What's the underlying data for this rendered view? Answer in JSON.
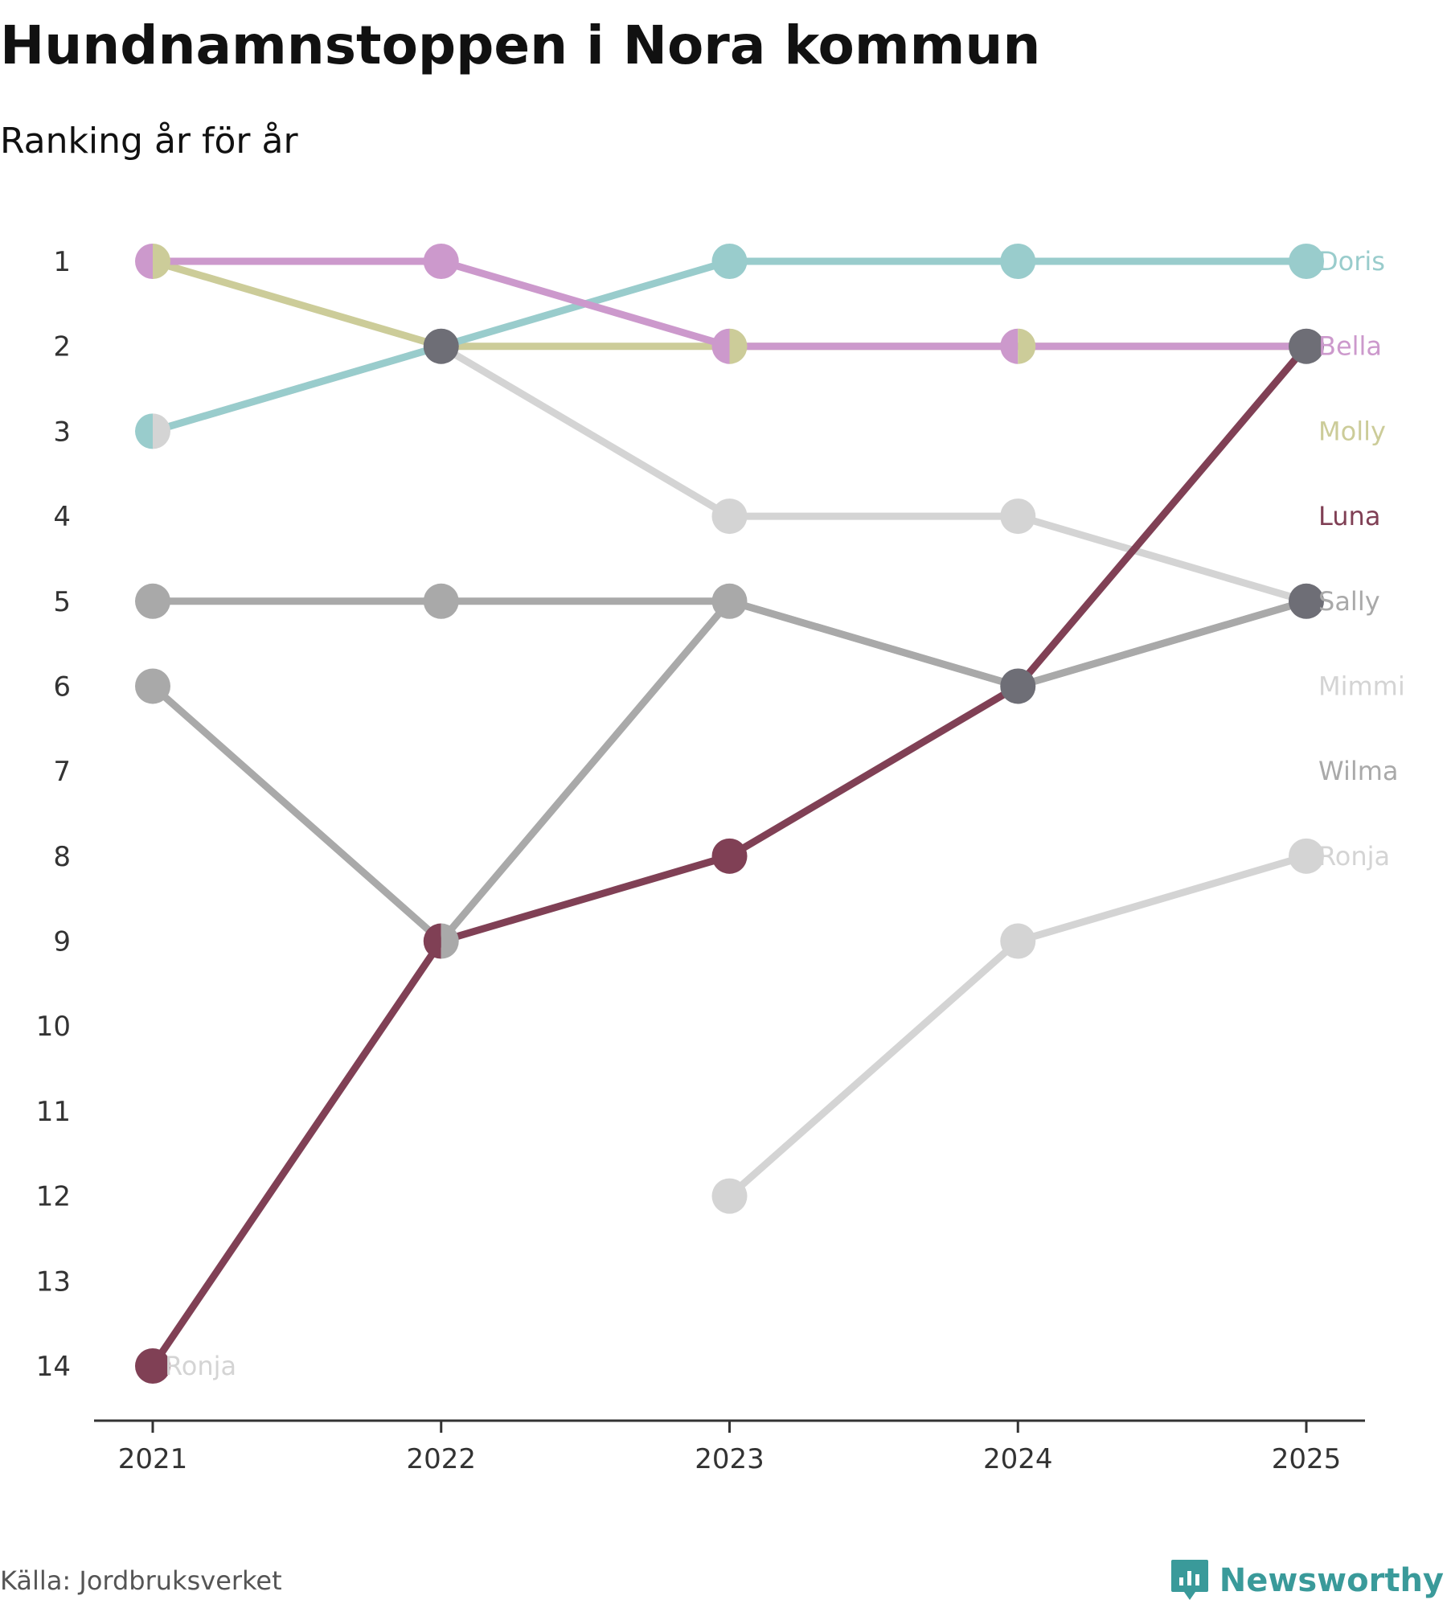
{
  "header": {
    "title": "Hundnamnstoppen i Nora kommun",
    "subtitle": "Ranking år för år"
  },
  "footer": {
    "source": "Källa: Jordbruksverket",
    "brand": "Newsworthy",
    "brand_color": "#3a9a9a"
  },
  "chart_data": {
    "type": "line",
    "title": "Hundnamnstoppen i Nora kommun",
    "subtitle": "Ranking år för år",
    "xlabel": "",
    "ylabel": "",
    "categories": [
      "2021",
      "2022",
      "2023",
      "2024",
      "2025"
    ],
    "y_ticks": [
      "1",
      "2",
      "3",
      "4",
      "5",
      "6",
      "7",
      "8",
      "9",
      "10",
      "11",
      "12",
      "13",
      "14"
    ],
    "ylim": [
      1,
      14
    ],
    "y_inverted": true,
    "grid": false,
    "series": [
      {
        "name": "Mimmi",
        "color": "#d4d4d4",
        "values": [
          3,
          2,
          4,
          4,
          5
        ]
      },
      {
        "name": "Ronja",
        "color": "#d4d4d4",
        "values": [
          null,
          null,
          12,
          9,
          8
        ]
      },
      {
        "name": "Sally",
        "color": "#a9a9a9",
        "values": [
          5,
          5,
          5,
          6,
          5
        ]
      },
      {
        "name": "Wilma",
        "color": "#a9a9a9",
        "values": [
          6,
          9,
          5,
          6,
          5
        ]
      },
      {
        "name": "Molly",
        "color": "#cccc99",
        "values": [
          1,
          2,
          2,
          2,
          2
        ]
      },
      {
        "name": "Doris",
        "color": "#99cccc",
        "values": [
          3,
          2,
          1,
          1,
          1
        ]
      },
      {
        "name": "Bella",
        "color": "#cc99cc",
        "values": [
          1,
          1,
          2,
          2,
          2
        ]
      },
      {
        "name": "Luna",
        "color": "#804055",
        "values": [
          14,
          9,
          8,
          6,
          2
        ]
      }
    ],
    "end_labels": [
      {
        "name": "Doris",
        "rank": 1,
        "color": "#99cccc"
      },
      {
        "name": "Bella",
        "rank": 2,
        "color": "#cc99cc"
      },
      {
        "name": "Molly",
        "rank": 3,
        "color": "#cccc99"
      },
      {
        "name": "Luna",
        "rank": 4,
        "color": "#804055"
      },
      {
        "name": "Sally",
        "rank": 5,
        "color": "#a9a9a9"
      },
      {
        "name": "Mimmi",
        "rank": 6,
        "color": "#d4d4d4"
      },
      {
        "name": "Wilma",
        "rank": 7,
        "color": "#a9a9a9"
      },
      {
        "name": "Ronja",
        "rank": 8,
        "color": "#d4d4d4"
      }
    ],
    "start_labels": [
      {
        "name": "Ronja",
        "rank": 14,
        "color": "#d4d4d4"
      }
    ],
    "overlap_color": "#6e6e76",
    "axis_color": "#333333"
  }
}
